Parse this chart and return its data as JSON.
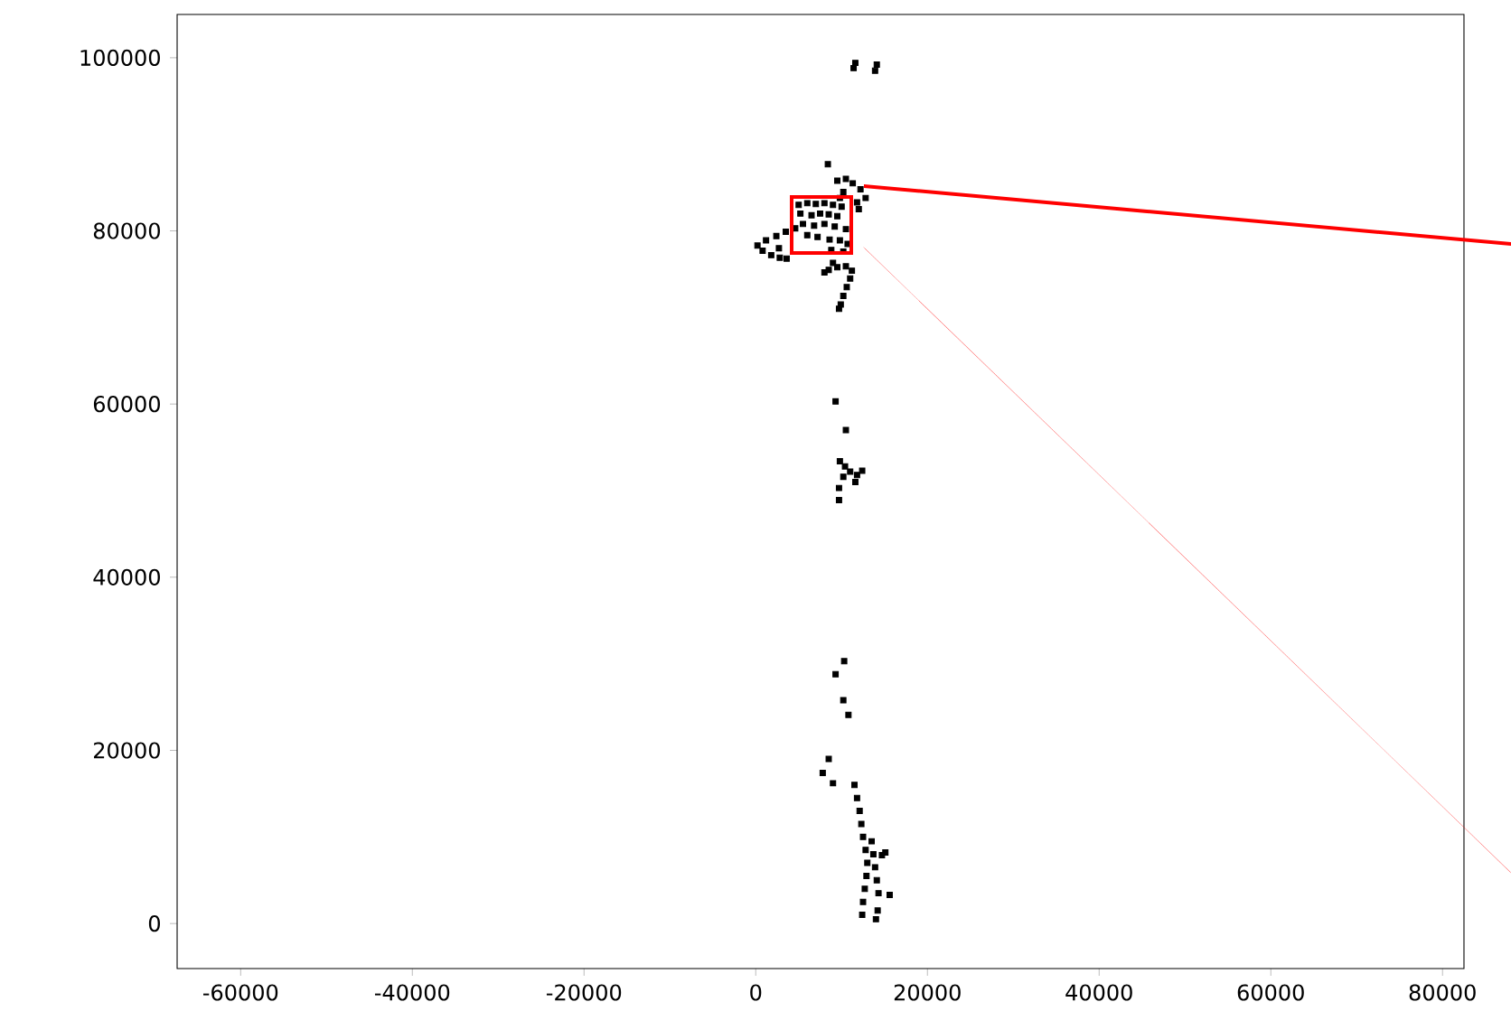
{
  "chart_data": {
    "type": "scatter",
    "marker": "square",
    "color": "#000000",
    "x": [
      11600,
      11400,
      14100,
      13900,
      8400,
      9500,
      10500,
      11300,
      12200,
      12800,
      11800,
      10200,
      9800,
      12000,
      5000,
      6000,
      7000,
      8000,
      9000,
      10000,
      5200,
      6500,
      7500,
      8500,
      9500,
      5500,
      6800,
      8000,
      9200,
      10500,
      6000,
      7200,
      8600,
      9800,
      10700,
      8800,
      10200,
      4600,
      3500,
      2400,
      1200,
      200,
      800,
      1800,
      2800,
      3600,
      2700,
      8500,
      9500,
      10500,
      11200,
      11000,
      10600,
      10200,
      9900,
      9700,
      9000,
      8000,
      9300,
      10500,
      9800,
      10400,
      11000,
      11800,
      12400,
      11600,
      10200,
      9700,
      9700,
      10300,
      9300,
      10200,
      10800,
      8500,
      7800,
      9000,
      11500,
      11800,
      12100,
      12300,
      12500,
      12800,
      13000,
      12900,
      12700,
      12500,
      12400,
      13500,
      13700,
      13900,
      14100,
      14300,
      14200,
      14000,
      14700,
      15100,
      15600
    ],
    "values": [
      99400,
      98800,
      99200,
      98500,
      87700,
      85800,
      86000,
      85500,
      84800,
      83800,
      83300,
      84500,
      83800,
      82500,
      83000,
      83200,
      83100,
      83200,
      83000,
      82800,
      82000,
      81800,
      82000,
      81900,
      81700,
      80800,
      80600,
      80800,
      80500,
      80200,
      79500,
      79300,
      79000,
      78900,
      78500,
      77800,
      77600,
      80300,
      79900,
      79400,
      78900,
      78300,
      77700,
      77200,
      76900,
      76800,
      78000,
      75500,
      75800,
      75900,
      75400,
      74500,
      73500,
      72500,
      71500,
      71000,
      76300,
      75200,
      60300,
      57000,
      53400,
      52800,
      52200,
      51800,
      52300,
      51000,
      51600,
      50300,
      48900,
      30300,
      28800,
      25800,
      24100,
      19000,
      17400,
      16200,
      16000,
      14500,
      13000,
      11500,
      10000,
      8500,
      7000,
      5500,
      4000,
      2500,
      1000,
      9500,
      8000,
      6500,
      5000,
      3500,
      1500,
      500,
      7900,
      8200,
      3300
    ],
    "xlim": [
      -67400,
      82500
    ],
    "ylim": [
      -5200,
      105000
    ],
    "xticks": [
      -60000,
      -40000,
      -20000,
      0,
      20000,
      40000,
      60000,
      80000
    ],
    "yticks": [
      0,
      20000,
      40000,
      60000,
      80000,
      100000
    ]
  }
}
